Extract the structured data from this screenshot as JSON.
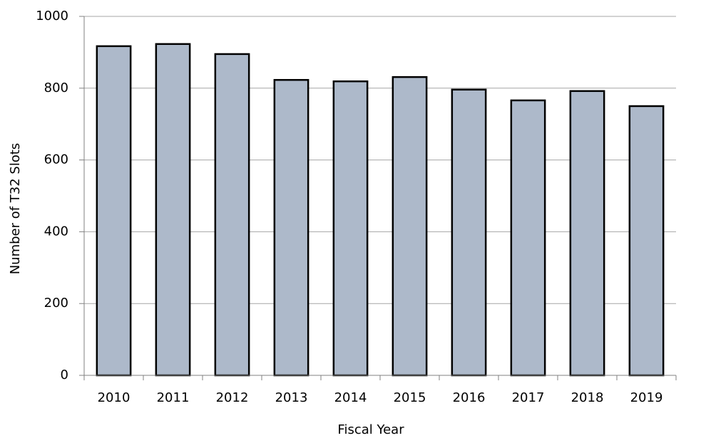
{
  "chart_data": {
    "type": "bar",
    "x_label": "Fiscal Year",
    "y_label": "Number of T32 Slots",
    "categories": [
      "2010",
      "2011",
      "2012",
      "2013",
      "2014",
      "2015",
      "2016",
      "2017",
      "2018",
      "2019"
    ],
    "values": [
      917,
      923,
      895,
      823,
      819,
      831,
      796,
      766,
      792,
      750
    ],
    "color": "#adb9ca",
    "ylim": [
      0,
      1000
    ],
    "yticks": [
      0,
      200,
      400,
      600,
      800,
      1000
    ],
    "grid": true
  }
}
